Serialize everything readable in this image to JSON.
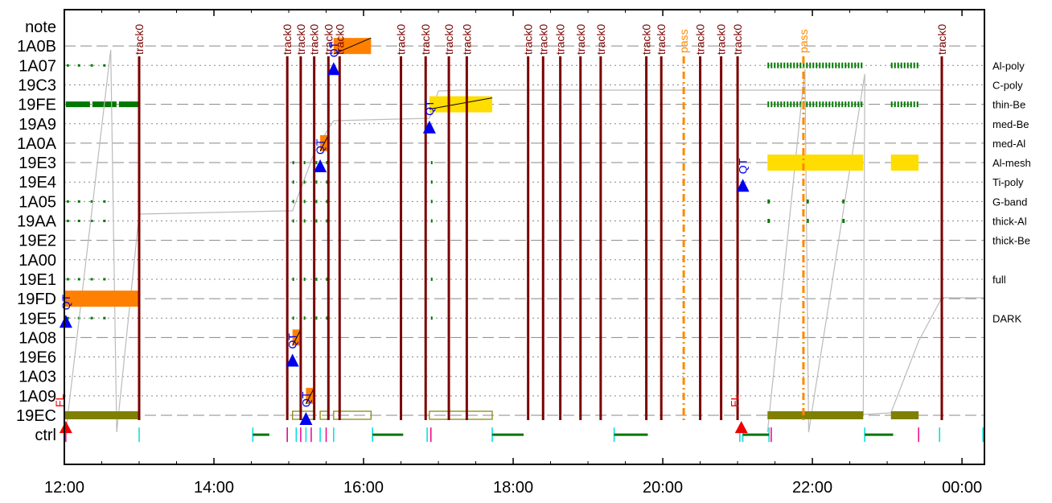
{
  "chart_data": {
    "type": "timeline",
    "x_ticks": [
      "12:00",
      "14:00",
      "16:00",
      "18:00",
      "20:00",
      "22:00",
      "00:00"
    ],
    "xlim_hours": [
      12.0,
      24.3
    ],
    "rows": [
      "note",
      "1A0B",
      "1A07",
      "19C3",
      "19FE",
      "19A9",
      "1A0A",
      "19E3",
      "19E4",
      "1A05",
      "19AA",
      "19E2",
      "1A00",
      "19E1",
      "19FD",
      "19E5",
      "1A08",
      "19E6",
      "1A03",
      "1A09",
      "19EC",
      "ctrl"
    ],
    "row_styles": {
      "1A0B": "dashed",
      "19FE": "dashed",
      "1A0A": "dashed",
      "19E3": "dashed",
      "19E2": "dashed",
      "19FD": "dashed",
      "1A08": "dashed",
      "19EC": "dashed"
    },
    "filter_labels": [
      {
        "row": "1A07",
        "text": "Al-poly"
      },
      {
        "row": "19C3",
        "text": "C-poly"
      },
      {
        "row": "19FE",
        "text": "thin-Be"
      },
      {
        "row": "19A9",
        "text": "med-Be"
      },
      {
        "row": "1A0A",
        "text": "med-Al"
      },
      {
        "row": "19E3",
        "text": "Al-mesh"
      },
      {
        "row": "19E4",
        "text": "Ti-poly"
      },
      {
        "row": "1A05",
        "text": "G-band"
      },
      {
        "row": "19AA",
        "text": "thick-Al"
      },
      {
        "row": "19E2",
        "text": "thick-Be"
      },
      {
        "row": "19E1",
        "text": "full"
      },
      {
        "row": "19E5",
        "text": "DARK"
      }
    ],
    "track_lines": {
      "label": "track0",
      "x": [
        13.0,
        14.98,
        15.16,
        15.34,
        15.53,
        15.68,
        16.5,
        16.83,
        17.14,
        17.38,
        18.2,
        18.4,
        18.63,
        18.9,
        19.17,
        19.78,
        19.98,
        20.5,
        20.78,
        21.0,
        23.73
      ]
    },
    "pass_lines": {
      "label": "pass",
      "x": [
        20.28,
        21.88
      ]
    },
    "qt_events": [
      {
        "x": 12.02,
        "row": "19E5",
        "label": "QT"
      },
      {
        "x": 15.05,
        "row": "19E6",
        "label": "QT"
      },
      {
        "x": 15.23,
        "row": "19EC",
        "label": "QT"
      },
      {
        "x": 15.42,
        "row": "19E3",
        "label": "QT"
      },
      {
        "x": 15.6,
        "row": "1A07",
        "label": "QT"
      },
      {
        "x": 16.88,
        "row": "19A9",
        "label": "QT"
      },
      {
        "x": 21.07,
        "row": "19E4",
        "label": "QT"
      }
    ],
    "fl_events": [
      {
        "x": 12.02,
        "label": "FL"
      },
      {
        "x": 21.05,
        "label": "FL"
      }
    ],
    "exposures": [
      {
        "row": "19FD",
        "start": 12.0,
        "end": 13.0,
        "color": "#ff8000"
      },
      {
        "row": "19EC",
        "start": 12.0,
        "end": 13.0,
        "color": "#808000"
      },
      {
        "row": "1A08",
        "start": 15.05,
        "end": 15.16,
        "color": "#ff8000"
      },
      {
        "row": "1A09",
        "start": 15.23,
        "end": 15.34,
        "color": "#ff8000"
      },
      {
        "row": "1A0A",
        "start": 15.42,
        "end": 15.53,
        "color": "#ff8000"
      },
      {
        "row": "1A0B",
        "start": 15.6,
        "end": 16.1,
        "color": "#ff8000"
      },
      {
        "row": "19FE",
        "start": 16.88,
        "end": 17.72,
        "color": "#ffdd00"
      },
      {
        "row": "19E3",
        "start": 21.4,
        "end": 22.68,
        "color": "#ffdd00"
      },
      {
        "row": "19E3",
        "start": 23.05,
        "end": 23.42,
        "color": "#ffdd00"
      },
      {
        "row": "19EC",
        "start": 21.4,
        "end": 22.68,
        "color": "#808000"
      },
      {
        "row": "19EC",
        "start": 23.05,
        "end": 23.42,
        "color": "#808000"
      }
    ],
    "hollow_exposures": [
      {
        "row": "19EC",
        "start": 15.05,
        "end": 15.34
      },
      {
        "row": "19EC",
        "start": 15.42,
        "end": 15.53
      },
      {
        "row": "19EC",
        "start": 15.6,
        "end": 16.1
      },
      {
        "row": "19EC",
        "start": 16.88,
        "end": 17.72
      }
    ],
    "colors": {
      "track": "#7a0000",
      "pass": "#ff8800",
      "qt": "#0000ee",
      "fl": "#ee0000",
      "orange": "#ff8000",
      "yellow": "#ffdd00",
      "olive": "#808000",
      "green": "#007700",
      "cyan": "#00dddd",
      "magenta": "#ee0088"
    }
  }
}
